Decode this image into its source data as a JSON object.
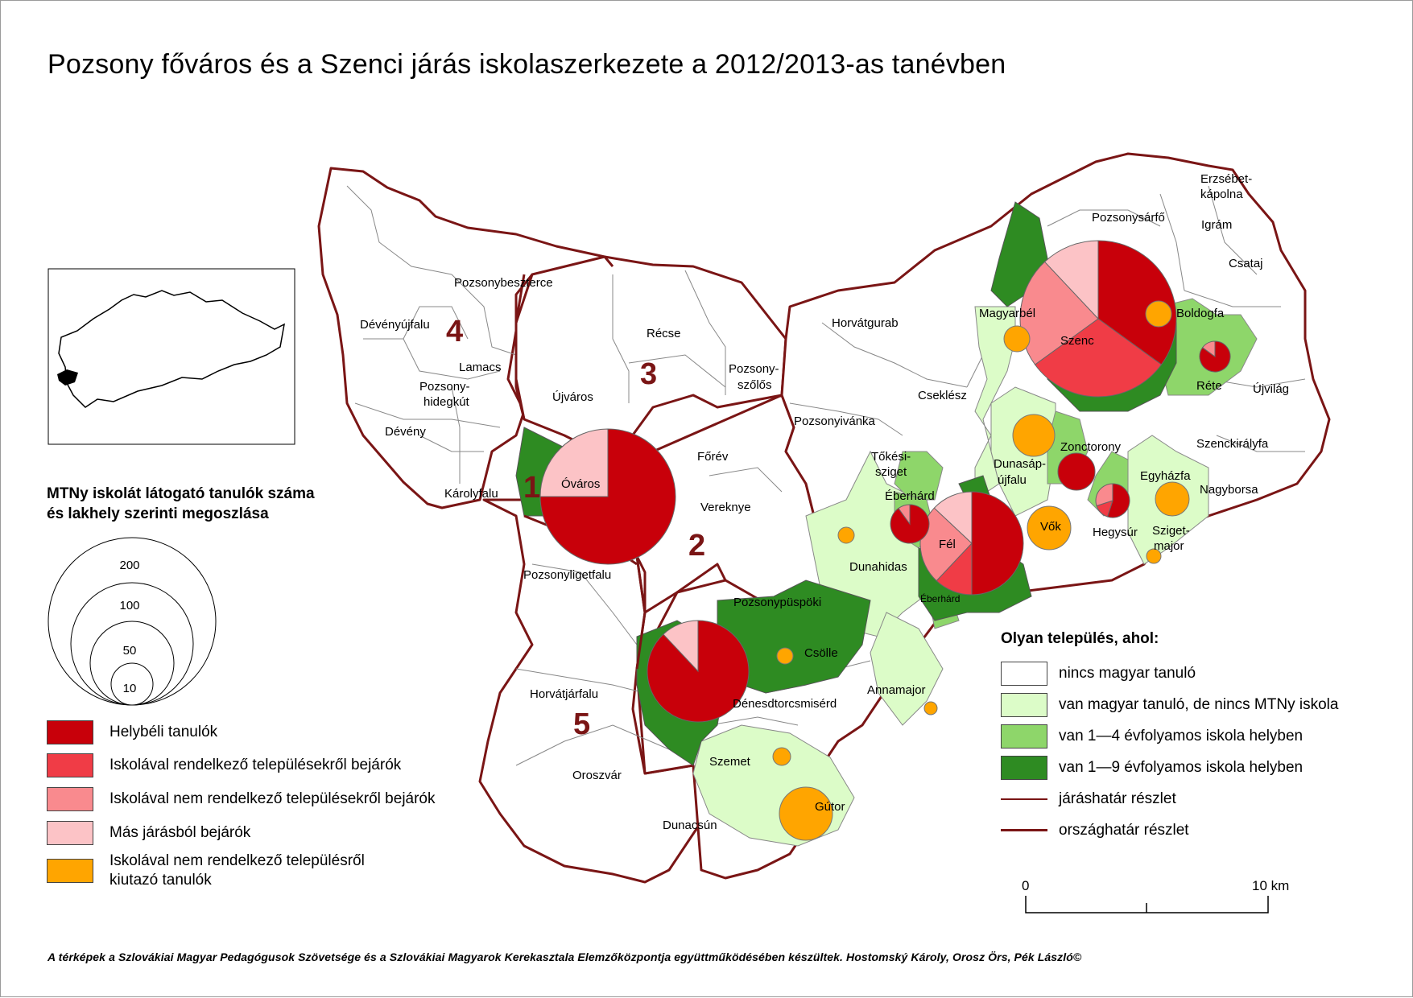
{
  "title": "Pozsony főváros és a Szenci járás iskolaszerkezete a 2012/2013-as tanévben",
  "colors": {
    "local": "#c8000a",
    "from_school_settlements": "#f03c46",
    "from_no_school_settlements": "#f98a8e",
    "other_district": "#fcc3c6",
    "outgoing": "#ffa500",
    "none": "#ffffff",
    "hungarian_no_school": "#dcfcc8",
    "school_1_4": "#8ed66a",
    "school_1_9": "#2e8b22",
    "border": "#7a1515"
  },
  "size_legend": {
    "title_line1": "MTNy iskolát látogató tanulók száma",
    "title_line2": "és lakhely szerinti megoszlása",
    "values": [
      "200",
      "100",
      "50",
      "10"
    ]
  },
  "student_legend": [
    {
      "label": "Helybéli tanulók",
      "color": "#c8000a"
    },
    {
      "label": "Iskolával rendelkező településekről bejárók",
      "color": "#f03c46"
    },
    {
      "label": "Iskolával nem rendelkező településekről bejárók",
      "color": "#f98a8e"
    },
    {
      "label": "Más járásból bejárók",
      "color": "#fcc3c6"
    },
    {
      "label": "Iskolával nem rendelkező településről",
      "label2": "kiutazó tanulók",
      "color": "#ffa500"
    }
  ],
  "settlement_legend": {
    "title": "Olyan település, ahol:",
    "items": [
      {
        "label": "nincs magyar tanuló",
        "color": "#ffffff"
      },
      {
        "label": "van magyar tanuló, de nincs MTNy iskola",
        "color": "#dcfcc8"
      },
      {
        "label": "van 1—4 évfolyamos iskola helyben",
        "color": "#8ed66a"
      },
      {
        "label": "van 1—9 évfolyamos iskola helyben",
        "color": "#2e8b22"
      }
    ],
    "line_items": [
      "járáshatár részlet",
      "országhatár részlet"
    ]
  },
  "scale": {
    "zero": "0",
    "end": "10 km"
  },
  "district_numbers": [
    "1",
    "2",
    "3",
    "4",
    "5"
  ],
  "places": [
    "Pozsonybeszterce",
    "Dévényújfalu",
    "Lamacs",
    "Pozsony-",
    "hidegkút",
    "Dévény",
    "Károlyfalu",
    "Récse",
    "Újváros",
    "Pozsony-",
    "szőlős",
    "Óváros",
    "Főrév",
    "Vereknye",
    "Pozsonyligetfalu",
    "Pozsonypüspöki",
    "Horvátjárfalu",
    "Oroszvár",
    "Dunacsún",
    "Csölle",
    "Dénesdtorcsmisérd",
    "Szemet",
    "Gútor",
    "Annamajor",
    "Horvátgurab",
    "Cseklész",
    "Pozsonyivánka",
    "Tőkési-",
    "sziget",
    "Éberhárd",
    "Dunahidas",
    "Fél",
    "Éberhárd",
    "Magyarbél",
    "Szenc",
    "Pozsonysárfő",
    "Erzsébet-",
    "kápolna",
    "Igrám",
    "Csataj",
    "Boldogfa",
    "Réte",
    "Újvilág",
    "Dunasáp-",
    "újfalu",
    "Zonctorony",
    "Szenckirályfa",
    "Nagyborsa",
    "Egyházfa",
    "Vők",
    "Hegysúr",
    "Sziget-",
    "major"
  ],
  "footer": "A térképek a  Szlovákiai Magyar Pedagógusok Szövetsége és a Szlovákiai Magyarok Kerekasztala Elemzőközpontja együttműködésében készültek. Hostomský Károly, Orosz Örs, Pék László©"
}
